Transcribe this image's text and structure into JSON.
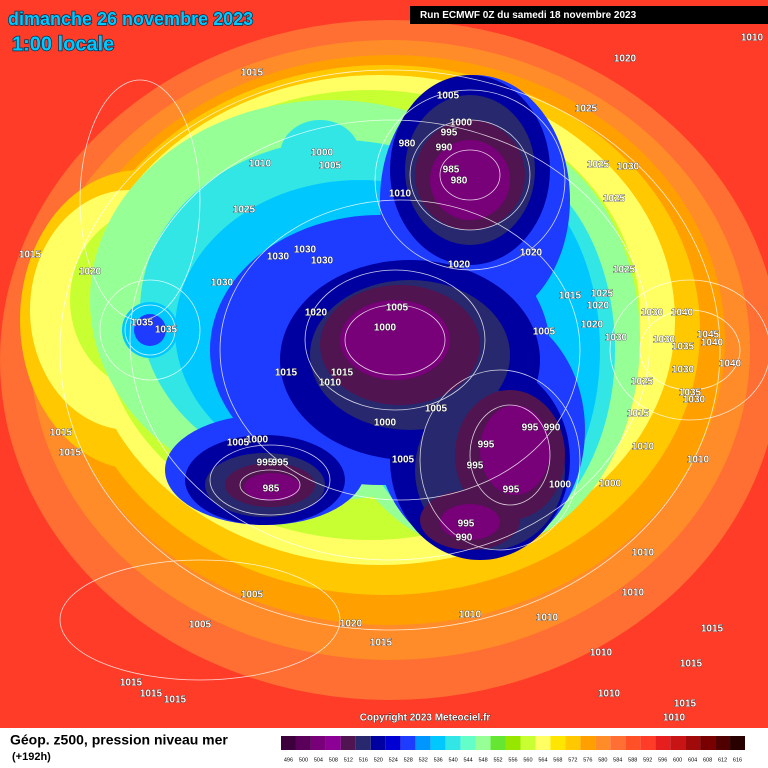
{
  "header": {
    "date": "dimanche 26 novembre 2023",
    "time": "1:00 locale",
    "run": "Run ECMWF 0Z du samedi 18 novembre 2023"
  },
  "footer": {
    "title": "Géop. z500, pression niveau mer",
    "lead": "(+192h)",
    "copyright": "Copyright 2023 Meteociel.fr"
  },
  "pressure_labels": [
    "1010",
    "1020",
    "1015",
    "1005",
    "1000",
    "995",
    "990",
    "980",
    "1025",
    "1000",
    "1005",
    "1010",
    "985",
    "980",
    "1025",
    "1030",
    "1010",
    "1025",
    "1025",
    "1030",
    "1030",
    "1030",
    "1020",
    "1020",
    "1015",
    "1020",
    "1025",
    "1030",
    "1015",
    "1025",
    "1020",
    "1005",
    "1020",
    "1030",
    "1040",
    "1035",
    "1035",
    "1000",
    "1005",
    "1020",
    "1045",
    "1030",
    "1030",
    "1040",
    "1035",
    "1040",
    "1030",
    "1015",
    "1015",
    "1010",
    "1025",
    "1035",
    "1030",
    "1005",
    "1015",
    "1000",
    "995",
    "990",
    "1000",
    "1005",
    "1015",
    "1015",
    "995",
    "1010",
    "995",
    "995",
    "995",
    "1005",
    "985",
    "995",
    "1000",
    "1000",
    "1010",
    "995",
    "990",
    "1010",
    "1005",
    "1005",
    "1010",
    "1010",
    "1010",
    "1020",
    "1015",
    "1015",
    "1010",
    "1015",
    "1015",
    "1015",
    "1015",
    "1010",
    "1015",
    "1010"
  ],
  "colorbar": {
    "ticks": [
      496,
      500,
      504,
      508,
      512,
      516,
      520,
      524,
      528,
      532,
      536,
      540,
      544,
      548,
      552,
      556,
      560,
      564,
      568,
      572,
      576,
      580,
      584,
      588,
      592,
      596,
      600,
      604,
      608,
      612,
      616
    ],
    "colors": [
      "#3c003c",
      "#5a005a",
      "#780078",
      "#8c0096",
      "#501450",
      "#28286e",
      "#0000a0",
      "#0000d2",
      "#1e3cff",
      "#0096ff",
      "#00c8ff",
      "#32e6e6",
      "#64ffc8",
      "#96ff96",
      "#64e632",
      "#96e600",
      "#c8ff32",
      "#ffff64",
      "#ffe600",
      "#ffc800",
      "#ffa000",
      "#ff8c28",
      "#ff6e32",
      "#ff5028",
      "#ff3c28",
      "#e61e1e",
      "#c81414",
      "#a00a0a",
      "#780000",
      "#500000",
      "#280000"
    ]
  }
}
